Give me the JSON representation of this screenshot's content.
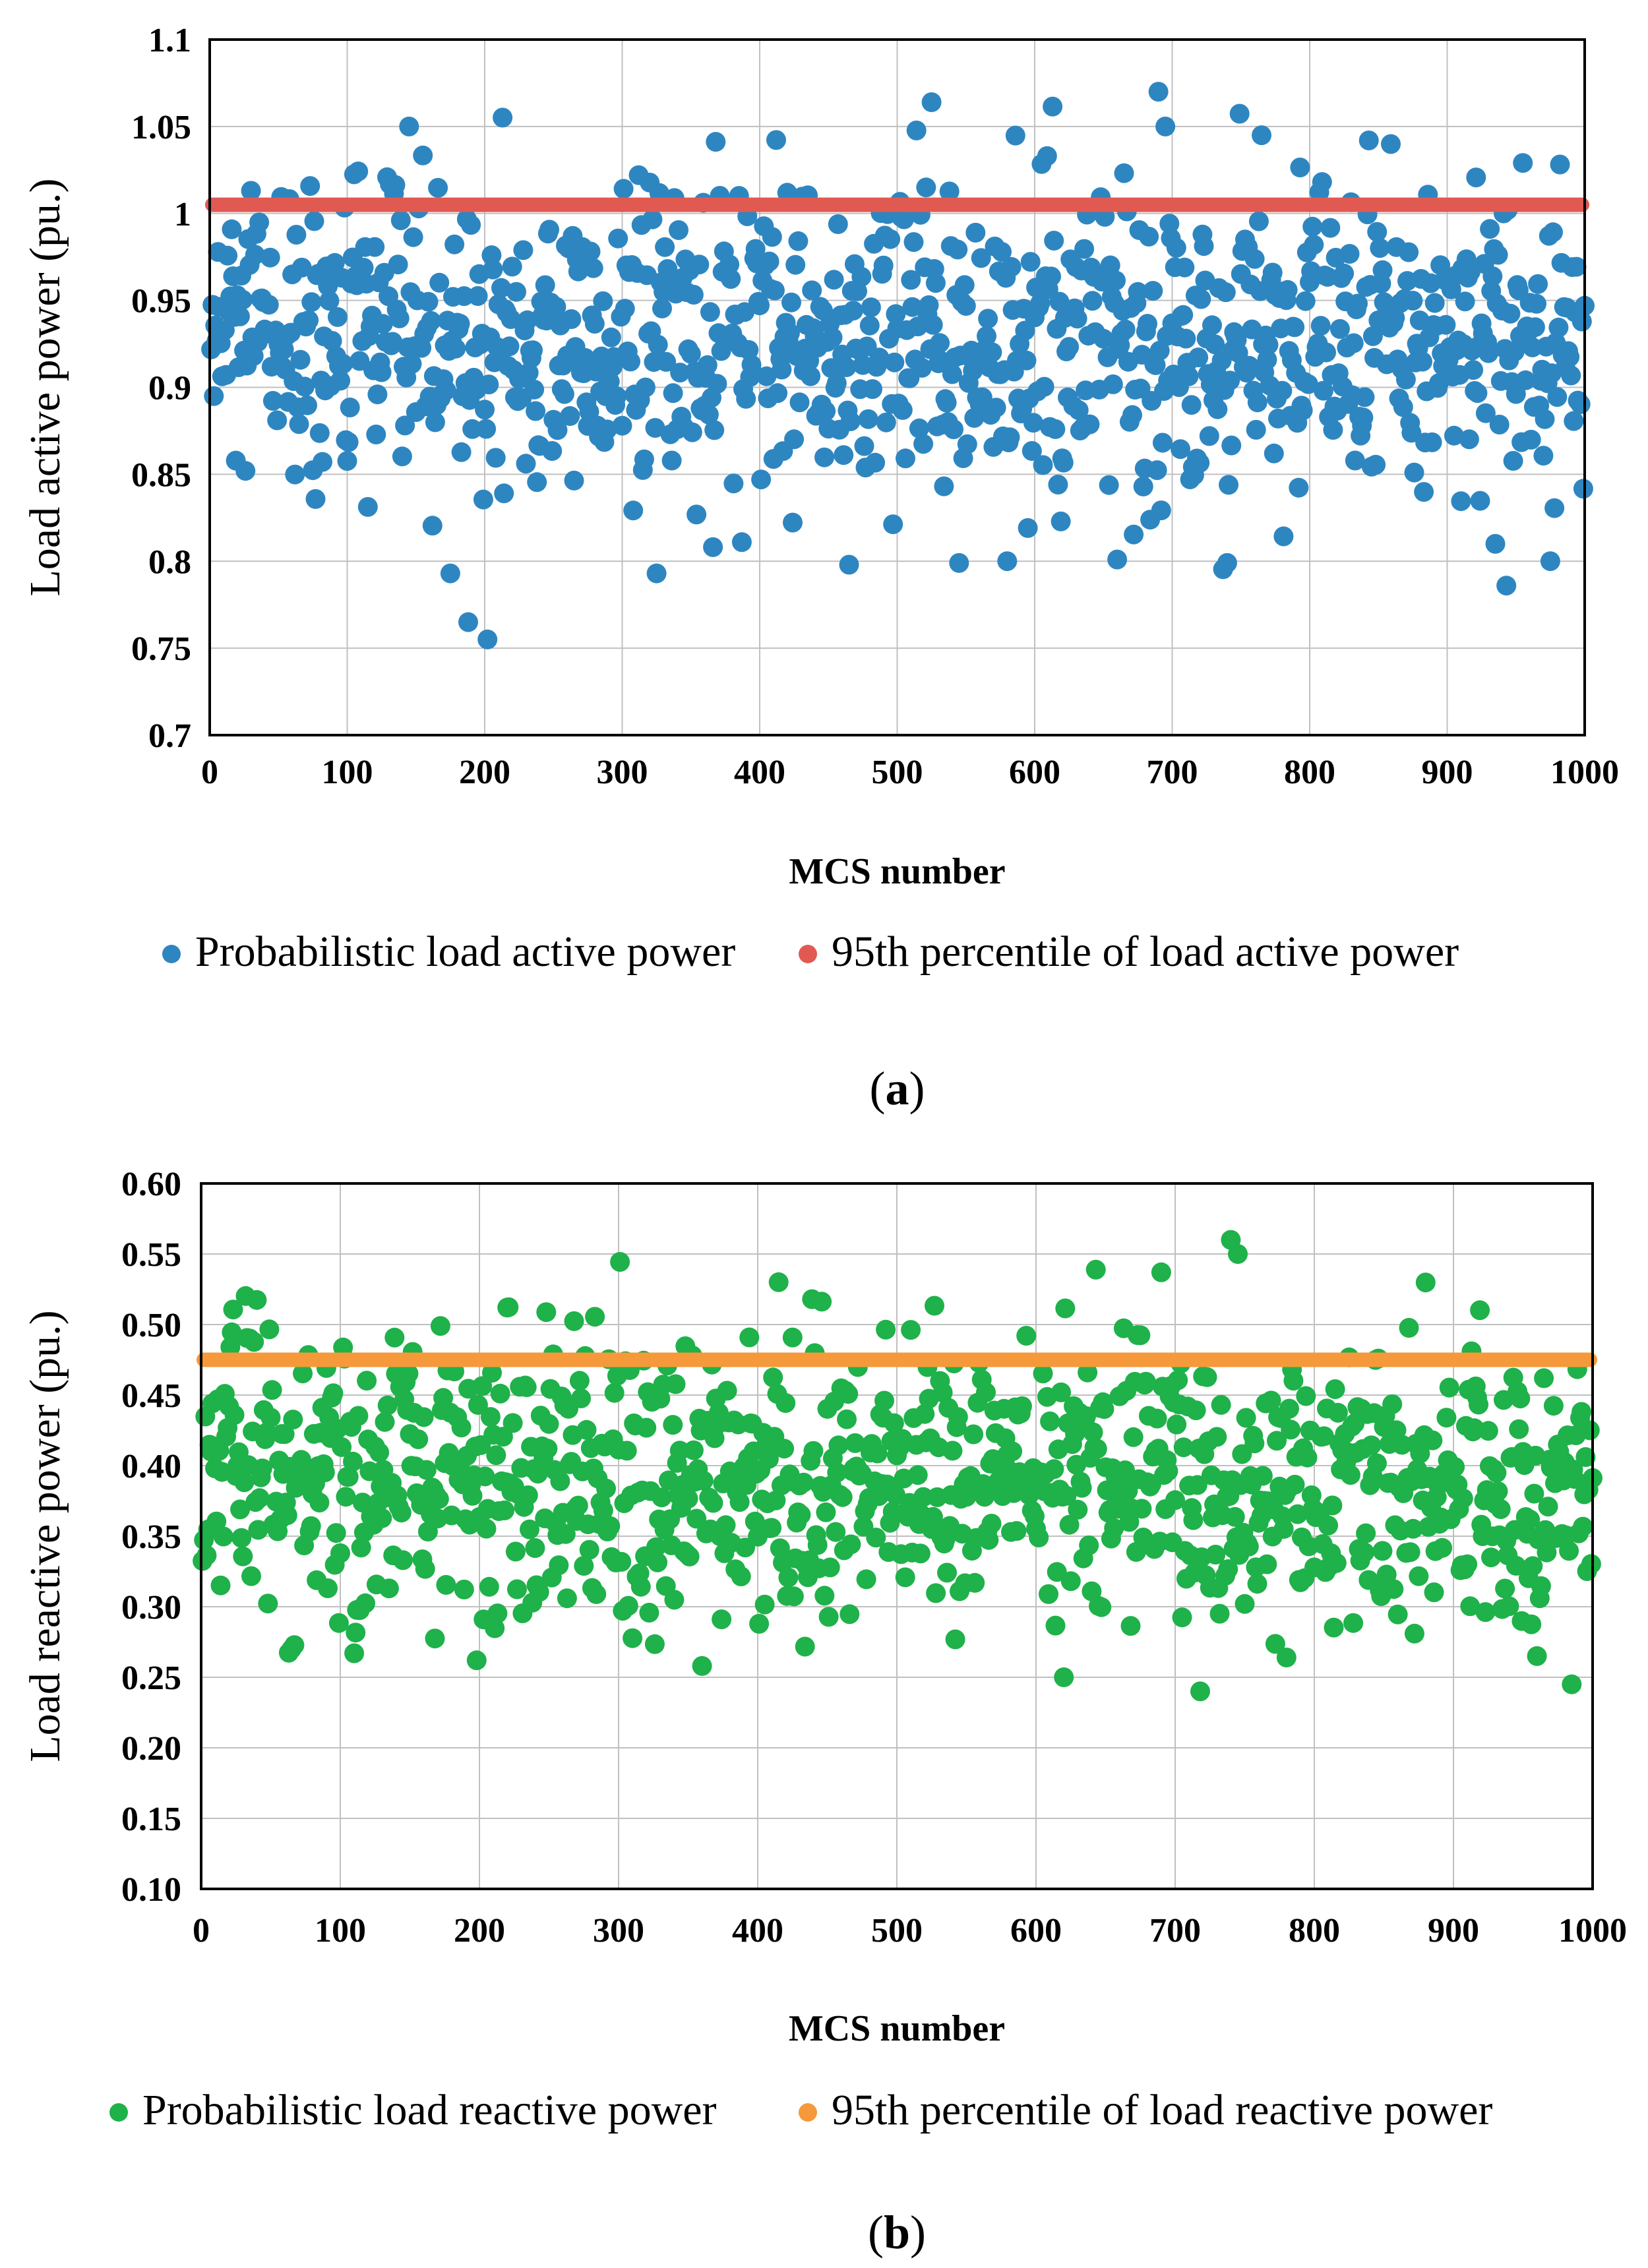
{
  "chart_data": [
    {
      "panel": "a",
      "type": "scatter",
      "xlabel": "MCS number",
      "ylabel": "Load active power (pu.)",
      "xlim": [
        0,
        1000
      ],
      "ylim": [
        0.7,
        1.1
      ],
      "xticks": [
        0,
        100,
        200,
        300,
        400,
        500,
        600,
        700,
        800,
        900,
        1000
      ],
      "xtick_labels": [
        "0",
        "100",
        "200",
        "300",
        "400",
        "500",
        "600",
        "700",
        "800",
        "900",
        "1000"
      ],
      "yticks": [
        0.7,
        0.75,
        0.8,
        0.85,
        0.9,
        0.95,
        1.0,
        1.05,
        1.1
      ],
      "ytick_labels": [
        "0.7",
        "0.75",
        "0.8",
        "0.85",
        "0.9",
        "0.95",
        "1",
        "1.05",
        "1.1"
      ],
      "grid": true,
      "legend_position": "bottom",
      "series": [
        {
          "name": "Probabilistic load active power",
          "kind": "scatter",
          "color": "#2e86c1",
          "n_points": 1000,
          "distribution": {
            "mean": 0.925,
            "std": 0.045,
            "min": 0.755,
            "max": 1.07
          },
          "highlighted_points": [
            {
              "x": 145,
              "y": 1.05
            },
            {
              "x": 188,
              "y": 0.765
            },
            {
              "x": 202,
              "y": 0.755
            },
            {
              "x": 175,
              "y": 0.793
            },
            {
              "x": 325,
              "y": 0.793
            },
            {
              "x": 525,
              "y": 1.064
            },
            {
              "x": 690,
              "y": 1.07
            },
            {
              "x": 695,
              "y": 1.05
            },
            {
              "x": 765,
              "y": 1.045
            },
            {
              "x": 843,
              "y": 1.042
            },
            {
              "x": 465,
              "y": 0.798
            },
            {
              "x": 545,
              "y": 0.799
            },
            {
              "x": 580,
              "y": 0.8
            },
            {
              "x": 660,
              "y": 0.801
            },
            {
              "x": 740,
              "y": 0.799
            },
            {
              "x": 935,
              "y": 0.81
            },
            {
              "x": 975,
              "y": 0.8
            }
          ]
        },
        {
          "name": "95th percentile of load active power",
          "kind": "hline",
          "color": "#e05a52",
          "y": 1.005
        }
      ],
      "caption": "a"
    },
    {
      "panel": "b",
      "type": "scatter",
      "xlabel": "MCS number",
      "ylabel": "Load reactive power (pu.)",
      "xlim": [
        0,
        1000
      ],
      "ylim": [
        0.1,
        0.6
      ],
      "xticks": [
        0,
        100,
        200,
        300,
        400,
        500,
        600,
        700,
        800,
        900,
        1000
      ],
      "xtick_labels": [
        "0",
        "100",
        "200",
        "300",
        "400",
        "500",
        "600",
        "700",
        "800",
        "900",
        "1000"
      ],
      "yticks": [
        0.1,
        0.15,
        0.2,
        0.25,
        0.3,
        0.35,
        0.4,
        0.45,
        0.5,
        0.55,
        0.6
      ],
      "ytick_labels": [
        "0.10",
        "0.15",
        "0.20",
        "0.25",
        "0.30",
        "0.35",
        "0.40",
        "0.45",
        "0.50",
        "0.55",
        "0.60"
      ],
      "grid": true,
      "legend_position": "bottom",
      "series": [
        {
          "name": "Probabilistic load reactive power",
          "kind": "scatter",
          "color": "#1fb14a",
          "n_points": 1000,
          "distribution": {
            "mean": 0.39,
            "std": 0.05,
            "min": 0.24,
            "max": 0.56
          },
          "highlighted_points": [
            {
              "x": 740,
              "y": 0.56
            },
            {
              "x": 745,
              "y": 0.55
            },
            {
              "x": 690,
              "y": 0.537
            },
            {
              "x": 415,
              "y": 0.53
            },
            {
              "x": 220,
              "y": 0.512
            },
            {
              "x": 718,
              "y": 0.24
            },
            {
              "x": 985,
              "y": 0.245
            },
            {
              "x": 620,
              "y": 0.25
            },
            {
              "x": 360,
              "y": 0.258
            },
            {
              "x": 198,
              "y": 0.262
            },
            {
              "x": 110,
              "y": 0.267
            },
            {
              "x": 65,
              "y": 0.27
            },
            {
              "x": 960,
              "y": 0.265
            },
            {
              "x": 780,
              "y": 0.264
            }
          ]
        },
        {
          "name": "95th percentile of load reactive power",
          "kind": "hline",
          "color": "#f5993a",
          "y": 0.475
        }
      ],
      "caption": "b"
    }
  ]
}
